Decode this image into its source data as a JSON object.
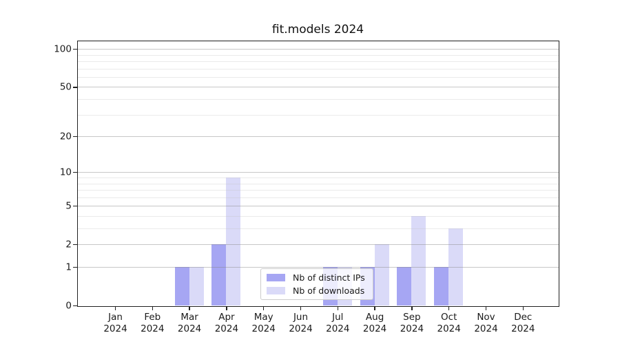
{
  "chart_data": {
    "type": "bar",
    "title": "fit.models 2024",
    "categories": [
      "Jan",
      "Feb",
      "Mar",
      "Apr",
      "May",
      "Jun",
      "Jul",
      "Aug",
      "Sep",
      "Oct",
      "Nov",
      "Dec"
    ],
    "category_year": "2024",
    "series": [
      {
        "name": "Nb of distinct IPs",
        "color": "#a6a6f3",
        "values": [
          0,
          0,
          1,
          2,
          0,
          0,
          1,
          1,
          1,
          1,
          0,
          0
        ]
      },
      {
        "name": "Nb of downloads",
        "color": "#dadaf8",
        "values": [
          0,
          0,
          1,
          9,
          0,
          0,
          1,
          2,
          4,
          3,
          0,
          0
        ]
      }
    ],
    "y_axis": {
      "scale": "log1p",
      "min": 0,
      "max": 115,
      "major_ticks": [
        0,
        1,
        2,
        5,
        10,
        20,
        50,
        100
      ],
      "minor_gridlines": [
        3,
        4,
        6,
        7,
        8,
        9,
        30,
        40,
        60,
        70,
        80,
        90
      ]
    },
    "legend": {
      "position": "lower center"
    },
    "grid": true
  }
}
